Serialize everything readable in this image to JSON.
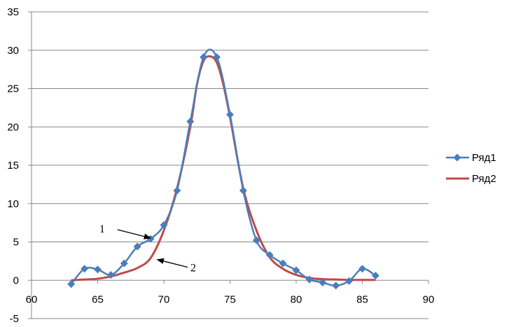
{
  "chart_data": {
    "type": "line",
    "title": "",
    "xlabel": "",
    "ylabel": "",
    "xlim": [
      60,
      90
    ],
    "ylim": [
      -5,
      35
    ],
    "x_ticks": [
      "60",
      "65",
      "70",
      "75",
      "80",
      "85",
      "90"
    ],
    "y_ticks": [
      "-5",
      "0",
      "5",
      "10",
      "15",
      "20",
      "25",
      "30",
      "35"
    ],
    "grid": true,
    "legend": "right",
    "series": [
      {
        "name": "Ряд1",
        "color": "#4a7ebb",
        "marker": "diamond",
        "x": [
          63,
          64,
          65,
          66,
          67,
          68,
          69,
          70,
          71,
          72,
          73,
          74,
          75,
          76,
          77,
          78,
          79,
          80,
          81,
          82,
          83,
          84,
          85,
          86
        ],
        "y": [
          -0.5,
          1.5,
          1.4,
          0.7,
          2.2,
          4.4,
          5.4,
          7.2,
          11.7,
          20.7,
          29.1,
          29.1,
          21.6,
          11.7,
          5.2,
          3.3,
          2.2,
          1.3,
          0.1,
          -0.3,
          -0.7,
          -0.1,
          1.5,
          0.6
        ]
      },
      {
        "name": "Ряд2",
        "color": "#be4b48",
        "marker": "none",
        "x": [
          63,
          64,
          65,
          66,
          67,
          68,
          69,
          70,
          71,
          72,
          72.5,
          73,
          73.5,
          74,
          74.5,
          75,
          76,
          77,
          78,
          79,
          80,
          81,
          82,
          83,
          84,
          85,
          86
        ],
        "y": [
          0.0,
          0.1,
          0.2,
          0.5,
          1.0,
          1.6,
          2.9,
          6.5,
          12.0,
          20.0,
          25.5,
          28.6,
          29.2,
          28.4,
          25.5,
          21.3,
          12.0,
          6.5,
          3.0,
          1.5,
          0.7,
          0.3,
          0.15,
          0.1,
          0.05,
          0.05,
          0.05
        ]
      }
    ],
    "annotations": [
      {
        "text": "1",
        "from": [
          66.5,
          6.6
        ],
        "to": [
          69.0,
          5.5
        ]
      },
      {
        "text": "2",
        "from": [
          71.8,
          1.7
        ],
        "to": [
          69.5,
          2.7
        ]
      }
    ]
  }
}
